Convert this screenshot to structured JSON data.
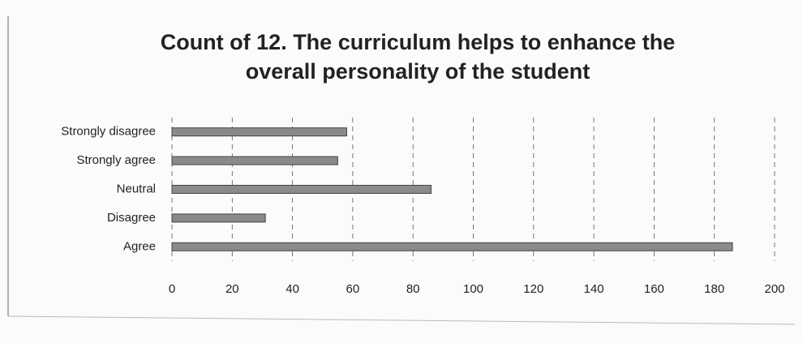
{
  "chart_data": {
    "type": "hbar",
    "title": "Count of 12. The curriculum helps to enhance the overall personality of the student",
    "categories": [
      "Strongly disagree",
      "Strongly agree",
      "Neutral",
      "Disagree",
      "Agree"
    ],
    "values": [
      58,
      55,
      86,
      31,
      186
    ],
    "color": "#8a8a8a",
    "xlim": [
      0,
      200
    ],
    "xticks": [
      0,
      20,
      40,
      60,
      80,
      100,
      120,
      140,
      160,
      180,
      200
    ],
    "grid": true
  }
}
